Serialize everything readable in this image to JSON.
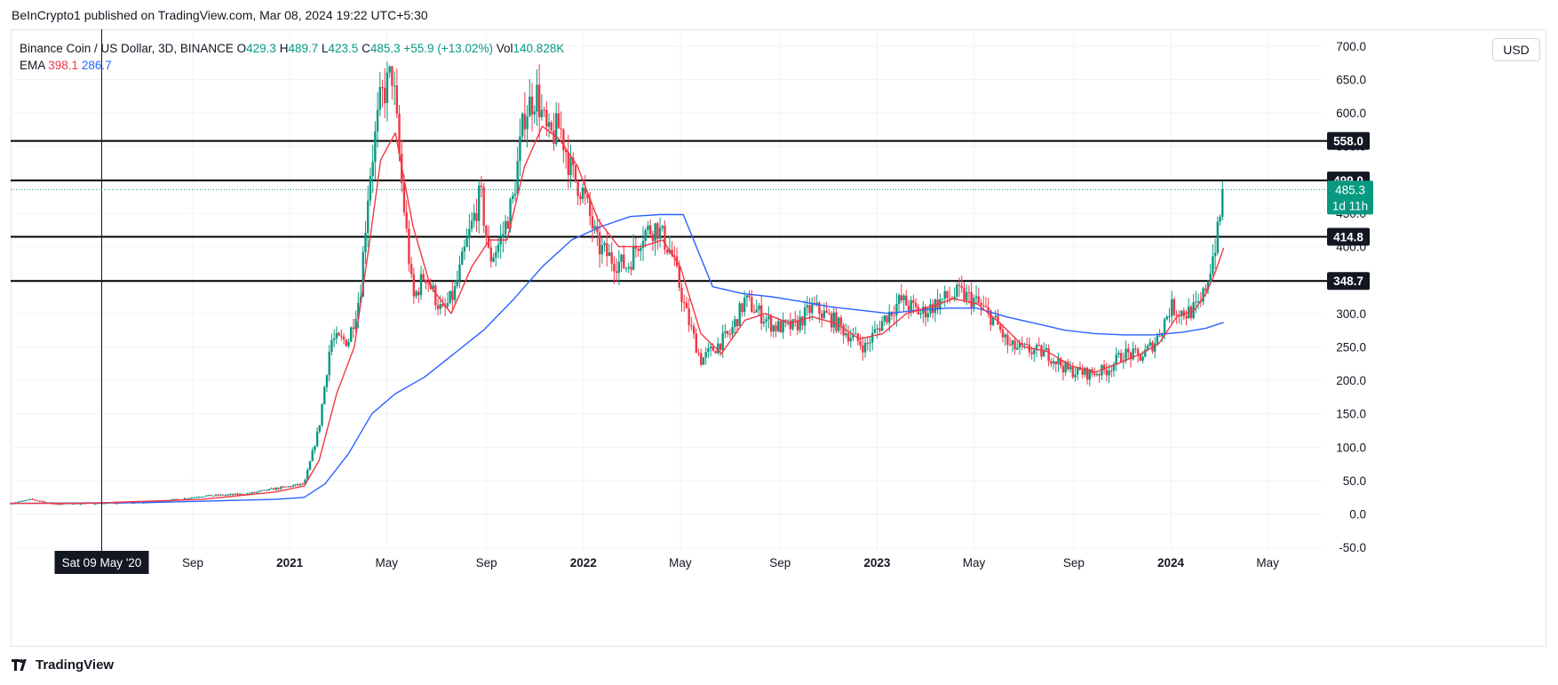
{
  "attribution": "BeInCrypto1 published on TradingView.com, Mar 08, 2024 19:22 UTC+5:30",
  "legend": {
    "symbol": "Binance Coin / US Dollar, 3D, BINANCE",
    "open_label": "O",
    "open": "429.3",
    "high_label": "H",
    "high": "489.7",
    "low_label": "L",
    "low": "423.5",
    "close_label": "C",
    "close": "485.3",
    "change": "+55.9 (+13.02%)",
    "vol_label": "Vol",
    "vol": "140.828K",
    "ema_label": "EMA",
    "ema_fast": "398.1",
    "ema_slow": "286.7"
  },
  "currency_button": "USD",
  "footer_logo": "TradingView",
  "colors": {
    "up": "#089981",
    "down": "#f23645",
    "ema_fast": "#f23645",
    "ema_slow": "#2962ff",
    "level_line": "#000000",
    "grid": "#f0f3fa"
  },
  "chart_data": {
    "type": "line",
    "y_axis_ticks": [
      "700.0",
      "650.0",
      "600.0",
      "550.0",
      "500.0",
      "450.0",
      "400.0",
      "350.0",
      "300.0",
      "250.0",
      "200.0",
      "150.0",
      "100.0",
      "50.0",
      "0.0",
      "-50.0"
    ],
    "ylim": [
      -55,
      725
    ],
    "x_axis_labels": [
      {
        "label": "Sat 09 May '20",
        "t": 2020.36,
        "highlight": true
      },
      {
        "label": "Sep",
        "t": 2020.67
      },
      {
        "label": "2021",
        "t": 2021.0,
        "year": true
      },
      {
        "label": "May",
        "t": 2021.33
      },
      {
        "label": "Sep",
        "t": 2021.67
      },
      {
        "label": "2022",
        "t": 2022.0,
        "year": true
      },
      {
        "label": "May",
        "t": 2022.33
      },
      {
        "label": "Sep",
        "t": 2022.67
      },
      {
        "label": "2023",
        "t": 2023.0,
        "year": true
      },
      {
        "label": "May",
        "t": 2023.33
      },
      {
        "label": "Sep",
        "t": 2023.67
      },
      {
        "label": "2024",
        "t": 2024.0,
        "year": true
      },
      {
        "label": "May",
        "t": 2024.33
      }
    ],
    "xlim": [
      2020.05,
      2024.52
    ],
    "crosshair_t": 2020.36,
    "horizontal_levels": [
      "558.0",
      "499.0",
      "414.8",
      "348.7"
    ],
    "last_price": {
      "value": "485.3",
      "countdown": "1d 11h"
    },
    "price_series": [
      {
        "t": 2020.05,
        "v": 16
      },
      {
        "t": 2020.12,
        "v": 22
      },
      {
        "t": 2020.2,
        "v": 15
      },
      {
        "t": 2020.3,
        "v": 16
      },
      {
        "t": 2020.5,
        "v": 17
      },
      {
        "t": 2020.62,
        "v": 22
      },
      {
        "t": 2020.7,
        "v": 27
      },
      {
        "t": 2020.85,
        "v": 30
      },
      {
        "t": 2020.95,
        "v": 38
      },
      {
        "t": 2021.05,
        "v": 45
      },
      {
        "t": 2021.1,
        "v": 130
      },
      {
        "t": 2021.14,
        "v": 260
      },
      {
        "t": 2021.2,
        "v": 260
      },
      {
        "t": 2021.24,
        "v": 330
      },
      {
        "t": 2021.27,
        "v": 500
      },
      {
        "t": 2021.31,
        "v": 620
      },
      {
        "t": 2021.35,
        "v": 660
      },
      {
        "t": 2021.38,
        "v": 500
      },
      {
        "t": 2021.42,
        "v": 320
      },
      {
        "t": 2021.46,
        "v": 360
      },
      {
        "t": 2021.52,
        "v": 300
      },
      {
        "t": 2021.56,
        "v": 330
      },
      {
        "t": 2021.6,
        "v": 400
      },
      {
        "t": 2021.65,
        "v": 480
      },
      {
        "t": 2021.68,
        "v": 380
      },
      {
        "t": 2021.72,
        "v": 410
      },
      {
        "t": 2021.76,
        "v": 470
      },
      {
        "t": 2021.8,
        "v": 600
      },
      {
        "t": 2021.84,
        "v": 630
      },
      {
        "t": 2021.88,
        "v": 560
      },
      {
        "t": 2021.92,
        "v": 580
      },
      {
        "t": 2021.96,
        "v": 510
      },
      {
        "t": 2022.0,
        "v": 480
      },
      {
        "t": 2022.05,
        "v": 400
      },
      {
        "t": 2022.1,
        "v": 380
      },
      {
        "t": 2022.15,
        "v": 370
      },
      {
        "t": 2022.2,
        "v": 420
      },
      {
        "t": 2022.25,
        "v": 430
      },
      {
        "t": 2022.3,
        "v": 390
      },
      {
        "t": 2022.35,
        "v": 300
      },
      {
        "t": 2022.4,
        "v": 230
      },
      {
        "t": 2022.45,
        "v": 250
      },
      {
        "t": 2022.5,
        "v": 270
      },
      {
        "t": 2022.55,
        "v": 320
      },
      {
        "t": 2022.6,
        "v": 300
      },
      {
        "t": 2022.65,
        "v": 280
      },
      {
        "t": 2022.72,
        "v": 280
      },
      {
        "t": 2022.78,
        "v": 310
      },
      {
        "t": 2022.85,
        "v": 290
      },
      {
        "t": 2022.9,
        "v": 270
      },
      {
        "t": 2022.96,
        "v": 250
      },
      {
        "t": 2023.02,
        "v": 290
      },
      {
        "t": 2023.08,
        "v": 320
      },
      {
        "t": 2023.15,
        "v": 300
      },
      {
        "t": 2023.22,
        "v": 320
      },
      {
        "t": 2023.28,
        "v": 330
      },
      {
        "t": 2023.33,
        "v": 320
      },
      {
        "t": 2023.4,
        "v": 290
      },
      {
        "t": 2023.45,
        "v": 250
      },
      {
        "t": 2023.52,
        "v": 245
      },
      {
        "t": 2023.58,
        "v": 240
      },
      {
        "t": 2023.65,
        "v": 215
      },
      {
        "t": 2023.72,
        "v": 210
      },
      {
        "t": 2023.78,
        "v": 215
      },
      {
        "t": 2023.84,
        "v": 240
      },
      {
        "t": 2023.9,
        "v": 235
      },
      {
        "t": 2023.95,
        "v": 260
      },
      {
        "t": 2024.0,
        "v": 310
      },
      {
        "t": 2024.05,
        "v": 300
      },
      {
        "t": 2024.1,
        "v": 310
      },
      {
        "t": 2024.13,
        "v": 360
      },
      {
        "t": 2024.16,
        "v": 420
      },
      {
        "t": 2024.18,
        "v": 485.3
      }
    ],
    "ema_fast_series": [
      {
        "t": 2020.05,
        "v": 16
      },
      {
        "t": 2020.3,
        "v": 16
      },
      {
        "t": 2020.7,
        "v": 22
      },
      {
        "t": 2020.95,
        "v": 33
      },
      {
        "t": 2021.05,
        "v": 42
      },
      {
        "t": 2021.1,
        "v": 80
      },
      {
        "t": 2021.16,
        "v": 180
      },
      {
        "t": 2021.22,
        "v": 250
      },
      {
        "t": 2021.27,
        "v": 400
      },
      {
        "t": 2021.31,
        "v": 530
      },
      {
        "t": 2021.36,
        "v": 570
      },
      {
        "t": 2021.42,
        "v": 430
      },
      {
        "t": 2021.48,
        "v": 340
      },
      {
        "t": 2021.55,
        "v": 300
      },
      {
        "t": 2021.62,
        "v": 370
      },
      {
        "t": 2021.68,
        "v": 410
      },
      {
        "t": 2021.74,
        "v": 410
      },
      {
        "t": 2021.8,
        "v": 520
      },
      {
        "t": 2021.86,
        "v": 580
      },
      {
        "t": 2021.92,
        "v": 560
      },
      {
        "t": 2021.98,
        "v": 520
      },
      {
        "t": 2022.05,
        "v": 440
      },
      {
        "t": 2022.12,
        "v": 400
      },
      {
        "t": 2022.2,
        "v": 400
      },
      {
        "t": 2022.27,
        "v": 410
      },
      {
        "t": 2022.33,
        "v": 370
      },
      {
        "t": 2022.4,
        "v": 270
      },
      {
        "t": 2022.47,
        "v": 240
      },
      {
        "t": 2022.55,
        "v": 290
      },
      {
        "t": 2022.62,
        "v": 300
      },
      {
        "t": 2022.7,
        "v": 285
      },
      {
        "t": 2022.78,
        "v": 295
      },
      {
        "t": 2022.86,
        "v": 285
      },
      {
        "t": 2022.94,
        "v": 262
      },
      {
        "t": 2023.02,
        "v": 270
      },
      {
        "t": 2023.1,
        "v": 300
      },
      {
        "t": 2023.18,
        "v": 310
      },
      {
        "t": 2023.26,
        "v": 322
      },
      {
        "t": 2023.34,
        "v": 315
      },
      {
        "t": 2023.42,
        "v": 285
      },
      {
        "t": 2023.5,
        "v": 250
      },
      {
        "t": 2023.58,
        "v": 243
      },
      {
        "t": 2023.66,
        "v": 222
      },
      {
        "t": 2023.74,
        "v": 212
      },
      {
        "t": 2023.82,
        "v": 225
      },
      {
        "t": 2023.9,
        "v": 240
      },
      {
        "t": 2023.96,
        "v": 255
      },
      {
        "t": 2024.02,
        "v": 295
      },
      {
        "t": 2024.08,
        "v": 305
      },
      {
        "t": 2024.12,
        "v": 330
      },
      {
        "t": 2024.15,
        "v": 360
      },
      {
        "t": 2024.18,
        "v": 398.1
      }
    ],
    "ema_slow_series": [
      {
        "t": 2020.05,
        "v": 16
      },
      {
        "t": 2020.5,
        "v": 17
      },
      {
        "t": 2020.95,
        "v": 22
      },
      {
        "t": 2021.05,
        "v": 25
      },
      {
        "t": 2021.12,
        "v": 45
      },
      {
        "t": 2021.2,
        "v": 90
      },
      {
        "t": 2021.28,
        "v": 150
      },
      {
        "t": 2021.36,
        "v": 180
      },
      {
        "t": 2021.46,
        "v": 205
      },
      {
        "t": 2021.56,
        "v": 240
      },
      {
        "t": 2021.66,
        "v": 275
      },
      {
        "t": 2021.76,
        "v": 320
      },
      {
        "t": 2021.86,
        "v": 370
      },
      {
        "t": 2021.96,
        "v": 410
      },
      {
        "t": 2022.06,
        "v": 430
      },
      {
        "t": 2022.16,
        "v": 445
      },
      {
        "t": 2022.26,
        "v": 448
      },
      {
        "t": 2022.34,
        "v": 448
      },
      {
        "t": 2022.44,
        "v": 340
      },
      {
        "t": 2022.54,
        "v": 330
      },
      {
        "t": 2022.64,
        "v": 325
      },
      {
        "t": 2022.74,
        "v": 318
      },
      {
        "t": 2022.84,
        "v": 310
      },
      {
        "t": 2022.94,
        "v": 305
      },
      {
        "t": 2023.04,
        "v": 300
      },
      {
        "t": 2023.14,
        "v": 305
      },
      {
        "t": 2023.24,
        "v": 308
      },
      {
        "t": 2023.34,
        "v": 308
      },
      {
        "t": 2023.44,
        "v": 295
      },
      {
        "t": 2023.54,
        "v": 285
      },
      {
        "t": 2023.64,
        "v": 275
      },
      {
        "t": 2023.74,
        "v": 270
      },
      {
        "t": 2023.84,
        "v": 268
      },
      {
        "t": 2023.94,
        "v": 268
      },
      {
        "t": 2024.04,
        "v": 272
      },
      {
        "t": 2024.12,
        "v": 278
      },
      {
        "t": 2024.18,
        "v": 286.7
      }
    ]
  }
}
